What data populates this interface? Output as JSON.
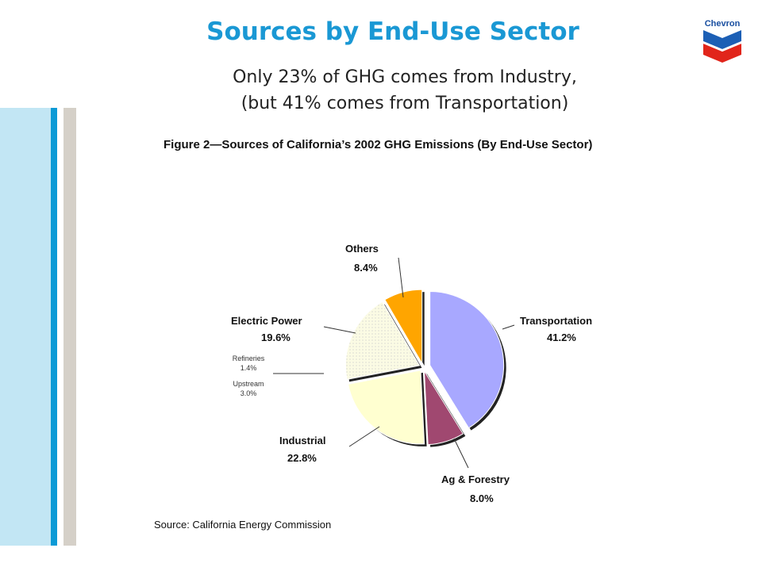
{
  "slide": {
    "title": "Sources by End-Use Sector",
    "subtitle_line1": "Only 23% of GHG comes from Industry,",
    "subtitle_line2": "(but 41% comes from Transportation)",
    "logo_text": "Chevron"
  },
  "figure": {
    "title": "Figure 2—Sources of California’s 2002 GHG Emissions (By End-Use Sector)",
    "source": "Source: California Energy Commission"
  },
  "colors": {
    "title": "#1a98d4",
    "stripe_light": "#c2e6f4",
    "stripe_blue": "#0c9ad6",
    "stripe_gray": "#d5d0c8"
  },
  "chart_data": {
    "type": "pie",
    "title": "Figure 2—Sources of California’s 2002 GHG Emissions (By End-Use Sector)",
    "slices": [
      {
        "label": "Transportation",
        "value_label": "41.2%",
        "value": 41.2,
        "color": "#a8a8ff"
      },
      {
        "label": "Ag & Forestry",
        "value_label": "8.0%",
        "value": 8.0,
        "color": "#a04870"
      },
      {
        "label": "Industrial",
        "value_label": "22.8%",
        "value": 22.8,
        "color": "#ffffd0"
      },
      {
        "label": "Electric Power",
        "value_label": "19.6%",
        "value": 19.6,
        "color": "#fbfbdc"
      },
      {
        "label": "Others",
        "value_label": "8.4%",
        "value": 8.4,
        "color": "#ffa500"
      }
    ],
    "sub_labels": [
      {
        "label": "Refineries",
        "value_label": "1.4%",
        "value": 1.4
      },
      {
        "label": "Upstream",
        "value_label": "3.0%",
        "value": 3.0
      }
    ]
  }
}
